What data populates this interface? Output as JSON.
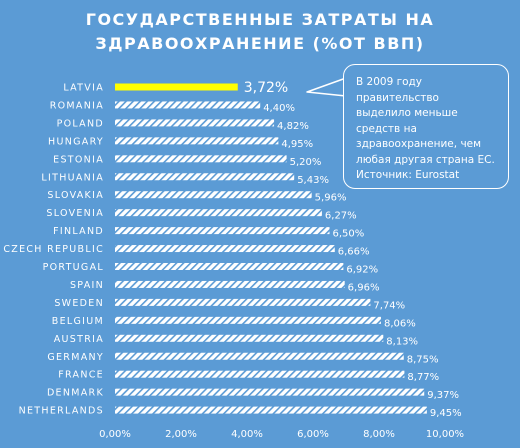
{
  "title": {
    "line1": "ГОСУДАРСТВЕННЫЕ ЗАТРАТЫ НА",
    "line2": "ЗДРАВООХРАНЕНИЕ (%ОТ ВВП)"
  },
  "callout": {
    "lines": [
      "В 2009 году правительство",
      "выделило меньше",
      "средств на",
      "здравоохранение, чем",
      "любая другая страна ЕС.",
      "Источник:  Eurostat"
    ]
  },
  "colors": {
    "background": "#5b9bd5",
    "bar": "#ffffff",
    "highlight_bar": "#ffff00"
  },
  "chart_data": {
    "type": "bar",
    "orientation": "horizontal",
    "categories": [
      "LATVIA",
      "ROMANIA",
      "POLAND",
      "HUNGARY",
      "ESTONIA",
      "LITHUANIA",
      "SLOVAKIA",
      "SLOVENIA",
      "FINLAND",
      "CZECH REPUBLIC",
      "PORTUGAL",
      "SPAIN",
      "SWEDEN",
      "BELGIUM",
      "AUSTRIA",
      "GERMANY",
      "FRANCE",
      "DENMARK",
      "NETHERLANDS"
    ],
    "values": [
      3.72,
      4.4,
      4.82,
      4.95,
      5.2,
      5.43,
      5.96,
      6.27,
      6.5,
      6.66,
      6.92,
      6.96,
      7.74,
      8.06,
      8.13,
      8.75,
      8.77,
      9.37,
      9.45
    ],
    "value_labels": [
      "3,72%",
      "4,40%",
      "4,82%",
      "4,95%",
      "5,20%",
      "5,43%",
      "5,96%",
      "6,27%",
      "6,50%",
      "6,66%",
      "6,92%",
      "6,96%",
      "7,74%",
      "8,06%",
      "8,13%",
      "8,75%",
      "8,77%",
      "9,37%",
      "9,45%"
    ],
    "highlight": "LATVIA",
    "xlim": [
      0,
      10
    ],
    "xticks": [
      0,
      2,
      4,
      6,
      8,
      10
    ],
    "xtick_labels": [
      "0,00%",
      "2,00%",
      "4,00%",
      "6,00%",
      "8,00%",
      "10,00%"
    ],
    "grid": false
  }
}
